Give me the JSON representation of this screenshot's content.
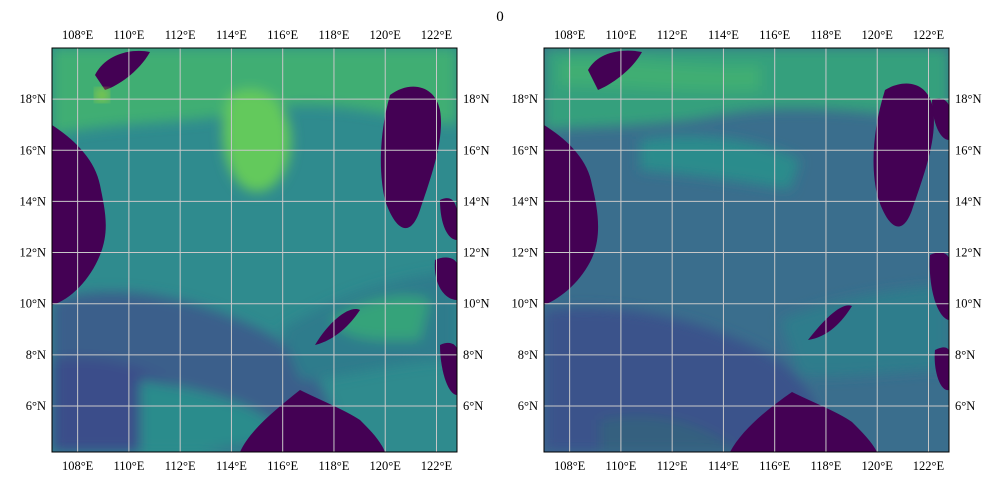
{
  "title": "0",
  "chart_data": [
    {
      "type": "heatmap",
      "xlim": [
        107,
        122.8
      ],
      "ylim": [
        4.2,
        20
      ],
      "x_ticks": [
        "108°E",
        "110°E",
        "112°E",
        "114°E",
        "116°E",
        "118°E",
        "120°E",
        "122°E"
      ],
      "x_tick_values": [
        108,
        110,
        112,
        114,
        116,
        118,
        120,
        122
      ],
      "y_ticks": [
        "6°N",
        "8°N",
        "10°N",
        "12°N",
        "14°N",
        "16°N",
        "18°N"
      ],
      "y_tick_values": [
        6,
        8,
        10,
        12,
        14,
        16,
        18
      ],
      "grid": true,
      "colormap": "viridis",
      "colors": {
        "land": "#440154",
        "low": "#3b528b",
        "mid": "#2c8c8c",
        "high": "#5ec962",
        "peak": "#b5de2b",
        "grid": "#c8c8c8"
      }
    },
    {
      "type": "heatmap",
      "xlim": [
        107,
        122.8
      ],
      "ylim": [
        4.2,
        20
      ],
      "x_ticks": [
        "108°E",
        "110°E",
        "112°E",
        "114°E",
        "116°E",
        "118°E",
        "120°E",
        "122°E"
      ],
      "x_tick_values": [
        108,
        110,
        112,
        114,
        116,
        118,
        120,
        122
      ],
      "y_ticks": [
        "6°N",
        "8°N",
        "10°N",
        "12°N",
        "14°N",
        "16°N",
        "18°N"
      ],
      "y_tick_values": [
        6,
        8,
        10,
        12,
        14,
        16,
        18
      ],
      "grid": true,
      "colormap": "viridis",
      "colors": {
        "land": "#440154",
        "low": "#3b528b",
        "mid": "#2c8c8c",
        "high": "#5ec962",
        "peak": "#b5de2b",
        "grid": "#c8c8c8"
      }
    }
  ]
}
